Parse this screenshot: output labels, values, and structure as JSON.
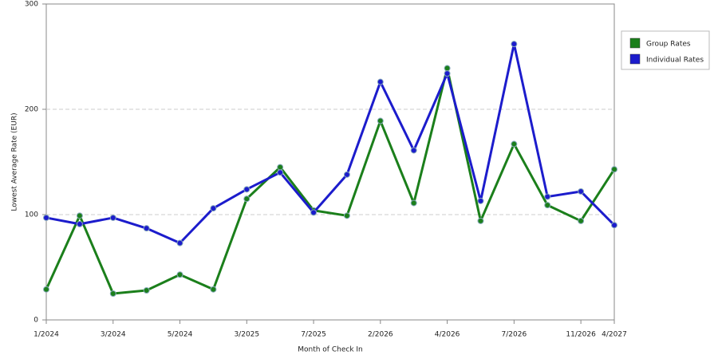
{
  "chart_data": {
    "type": "line",
    "x_label": "Month of Check In",
    "y_label": "Lowest Average Rate (EUR)",
    "categories": [
      "1/2024",
      null,
      "3/2024",
      null,
      "5/2024",
      null,
      "3/2025",
      null,
      "7/2025",
      null,
      "2/2026",
      null,
      "4/2026",
      null,
      "7/2026",
      null,
      "11/2026",
      "4/2027"
    ],
    "series": [
      {
        "name": "Group Rates",
        "color": "#1b7f1b",
        "values": [
          29,
          99,
          25,
          28,
          43,
          29,
          115,
          145,
          104,
          99,
          189,
          111,
          239,
          94,
          167,
          109,
          94,
          143
        ]
      },
      {
        "name": "Individual Rates",
        "color": "#1c1ccc",
        "values": [
          97,
          91,
          97,
          87,
          73,
          106,
          124,
          140,
          102,
          138,
          226,
          161,
          234,
          113,
          262,
          117,
          122,
          90
        ]
      }
    ],
    "ylim": [
      0,
      300
    ],
    "yticks": [
      0,
      100,
      200,
      300
    ],
    "grid": true,
    "legend": "right"
  }
}
